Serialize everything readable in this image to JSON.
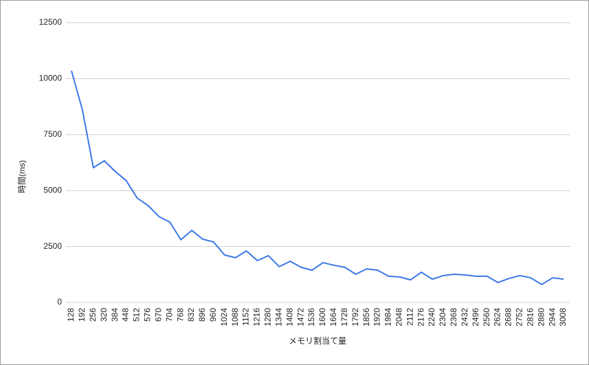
{
  "chart_data": {
    "type": "line",
    "x_label": "メモリ割当て量",
    "y_label": "時間(ms)",
    "categories": [
      "128",
      "192",
      "256",
      "320",
      "384",
      "448",
      "512",
      "576",
      "670",
      "704",
      "768",
      "832",
      "896",
      "960",
      "1024",
      "1088",
      "1152",
      "1216",
      "1280",
      "1344",
      "1408",
      "1472",
      "1536",
      "1600",
      "1664",
      "1728",
      "1792",
      "1856",
      "1920",
      "1984",
      "2048",
      "2112",
      "2176",
      "2240",
      "2304",
      "2368",
      "2432",
      "2496",
      "2560",
      "2624",
      "2688",
      "2752",
      "2816",
      "2880",
      "2944",
      "3008"
    ],
    "values": [
      10350,
      8600,
      6020,
      6330,
      5850,
      5450,
      4670,
      4330,
      3840,
      3590,
      2800,
      3220,
      2830,
      2700,
      2120,
      2000,
      2300,
      1870,
      2090,
      1600,
      1840,
      1570,
      1440,
      1780,
      1660,
      1570,
      1260,
      1500,
      1440,
      1170,
      1140,
      1010,
      1350,
      1040,
      1200,
      1260,
      1230,
      1170,
      1170,
      890,
      1070,
      1200,
      1100,
      800,
      1100,
      1040
    ],
    "color": "#3b78e7",
    "ylim": [
      0,
      12500
    ],
    "yticks": [
      0,
      2500,
      5000,
      7500,
      10000,
      12500
    ],
    "grid": true
  }
}
